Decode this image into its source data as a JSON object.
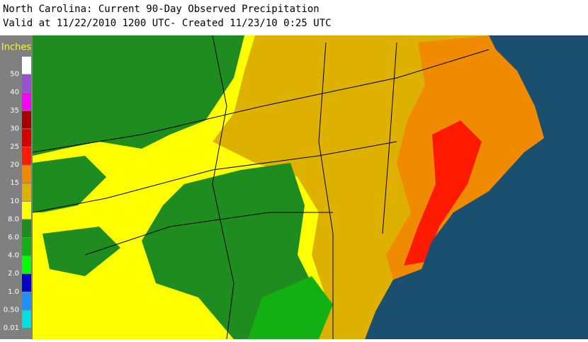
{
  "header": {
    "title": "North Carolina: Current 90-Day Observed Precipitation",
    "subtitle": "Valid at 11/22/2010 1200 UTC- Created 11/23/10 0:25 UTC"
  },
  "legend": {
    "unit": "Inches",
    "items": [
      {
        "label": "50",
        "color": "#ffffff"
      },
      {
        "label": "40",
        "color": "#9a50d0"
      },
      {
        "label": "35",
        "color": "#ff00ff"
      },
      {
        "label": "30",
        "color": "#a80000"
      },
      {
        "label": "25",
        "color": "#d40000"
      },
      {
        "label": "20",
        "color": "#ff1a00"
      },
      {
        "label": "15",
        "color": "#f08a00"
      },
      {
        "label": "10",
        "color": "#deb000"
      },
      {
        "label": "8.0",
        "color": "#ffff00"
      },
      {
        "label": "6.0",
        "color": "#1e8c1e"
      },
      {
        "label": "4.0",
        "color": "#12b012"
      },
      {
        "label": "2.0",
        "color": "#00ff00"
      },
      {
        "label": "1.0",
        "color": "#0000c8"
      },
      {
        "label": "0.50",
        "color": "#1e90ff"
      },
      {
        "label": "0.01",
        "color": "#00e0e0"
      }
    ]
  }
}
